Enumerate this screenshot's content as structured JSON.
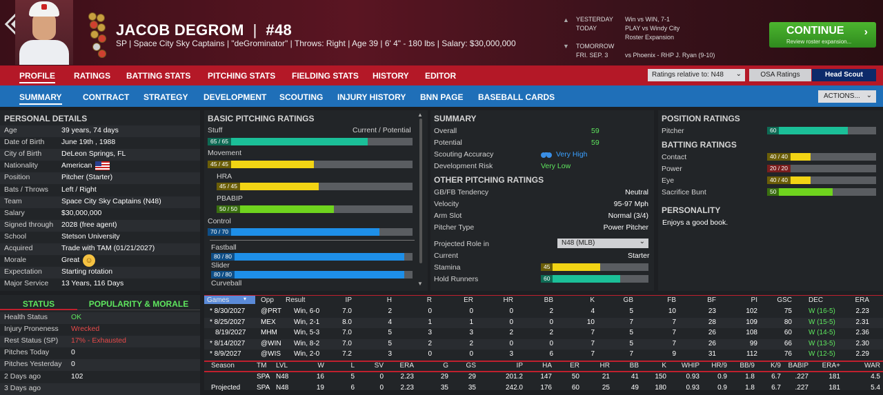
{
  "header": {
    "name": "JACOB DEGROM",
    "sep": "|",
    "number": "#48",
    "sub": "SP | Space City Sky Captains | \"deGrominator\" | Throws: Right | Age 39 | 6' 4\" - 180 lbs | Salary: $30,000,000"
  },
  "schedule": {
    "yesterday_label": "YESTERDAY",
    "yesterday": "Win vs WIN, 7-1",
    "today_label": "TODAY",
    "today1": "PLAY vs Windy City",
    "today2": "Roster Expansion",
    "tomorrow_label": "TOMORROW",
    "tomorrow_date": "FRI. SEP. 3",
    "tomorrow": "vs Phoenix - RHP J. Ryan (9-10)"
  },
  "continue": {
    "label": "CONTINUE",
    "sub": "Review roster expansion..."
  },
  "nav1": [
    "PROFILE",
    "RATINGS",
    "BATTING STATS",
    "PITCHING STATS",
    "FIELDING STATS",
    "HISTORY",
    "EDITOR"
  ],
  "ratings_rel": "Ratings relative to: N48",
  "osa": "OSA Ratings",
  "head_scout": "Head Scout",
  "nav2": [
    "SUMMARY",
    "CONTRACT",
    "STRATEGY",
    "DEVELOPMENT",
    "SCOUTING",
    "INJURY HISTORY",
    "BNN PAGE",
    "BASEBALL CARDS"
  ],
  "actions": "ACTIONS...",
  "personal": {
    "title": "PERSONAL DETAILS",
    "rows": [
      [
        "Age",
        "39 years, 74 days"
      ],
      [
        "Date of Birth",
        "June 19th , 1988"
      ],
      [
        "City of Birth",
        "DeLeon Springs, FL"
      ],
      [
        "Nationality",
        "American"
      ],
      [
        "Position",
        "Pitcher (Starter)"
      ],
      [
        "Bats / Throws",
        "Left / Right"
      ],
      [
        "Team",
        "Space City Sky Captains (N48)"
      ],
      [
        "Salary",
        "$30,000,000"
      ],
      [
        "Signed through",
        "2028 (free agent)"
      ],
      [
        "School",
        "Stetson University"
      ],
      [
        "Acquired",
        "Trade with TAM (01/21/2027)"
      ],
      [
        "Morale",
        "Great"
      ],
      [
        "Expectation",
        "Starting rotation"
      ],
      [
        "Major Service",
        "13 Years, 116 Days"
      ]
    ]
  },
  "status": {
    "tab1": "STATUS",
    "tab2": "POPULARITY & MORALE",
    "rows": [
      [
        "Health Status",
        "OK"
      ],
      [
        "Injury Proneness",
        "Wrecked"
      ],
      [
        "Rest Status (SP)",
        "17% - Exhausted"
      ],
      [
        "Pitches Today",
        "0"
      ],
      [
        "Pitches Yesterday",
        "0"
      ],
      [
        "2 Days ago",
        "102"
      ],
      [
        "3 Days ago",
        ""
      ]
    ]
  },
  "basic": {
    "title": "BASIC PITCHING RATINGS",
    "stuff": "Stuff",
    "cp": "Current / Potential",
    "movement": "Movement",
    "hra": "HRA",
    "pbabip": "PBABIP",
    "control": "Control",
    "fastball": "Fastball",
    "slider": "Slider",
    "curveball": "Curveball",
    "ratings": {
      "stuff": "65 / 65",
      "movement": "45 / 45",
      "hra": "45 / 45",
      "pbabip": "50 / 50",
      "control": "70 / 70",
      "fastball": "80 / 80",
      "slider": "80 / 80"
    },
    "values": {
      "stuff": 0.78,
      "movement": 0.52,
      "hra": 0.52,
      "pbabip": 0.6,
      "control": 0.84,
      "fastball": 0.96,
      "slider": 0.96
    }
  },
  "summary": {
    "title": "SUMMARY",
    "overall_l": "Overall",
    "overall": "59",
    "potential_l": "Potential",
    "potential": "59",
    "scout_l": "Scouting Accuracy",
    "scout": "Very High",
    "risk_l": "Development Risk",
    "risk": "Very Low",
    "other": "OTHER PITCHING RATINGS",
    "rows": [
      [
        "GB/FB Tendency",
        "Neutral"
      ],
      [
        "Velocity",
        "95-97 Mph"
      ],
      [
        "Arm Slot",
        "Normal (3/4)"
      ],
      [
        "Pitcher Type",
        "Power Pitcher"
      ]
    ],
    "role_l": "Projected Role in",
    "role": "N48 (MLB)",
    "current_l": "Current",
    "current": "Starter",
    "stamina_l": "Stamina",
    "stamina": "45",
    "stamina_v": 0.55,
    "hold_l": "Hold Runners",
    "hold": "60",
    "hold_v": 0.74
  },
  "position": {
    "title": "POSITION RATINGS",
    "pitcher_l": "Pitcher",
    "pitcher": "60",
    "pitcher_v": 0.74,
    "batting": "BATTING RATINGS",
    "contact_l": "Contact",
    "contact": "40 / 40",
    "contact_v": 0.4,
    "power_l": "Power",
    "power": "20 / 20",
    "power_v": 0.21,
    "eye_l": "Eye",
    "eye": "40 / 40",
    "eye_v": 0.4,
    "sac_l": "Sacrifice Bunt",
    "sac": "50",
    "sac_v": 0.6,
    "personality": "PERSONALITY",
    "pers_text": "Enjoys a good book."
  },
  "games": {
    "headers": [
      "Games",
      "Opp",
      "Result",
      "IP",
      "H",
      "R",
      "ER",
      "HR",
      "BB",
      "K",
      "GB",
      "FB",
      "BF",
      "PI",
      "GSC",
      "DEC",
      "ERA"
    ],
    "rows": [
      [
        "* 8/30/2027",
        "@PRT",
        "Win, 6-0",
        "7.0",
        "2",
        "0",
        "0",
        "0",
        "2",
        "4",
        "5",
        "10",
        "23",
        "102",
        "75",
        "W (16-5)",
        "2.23"
      ],
      [
        "* 8/25/2027",
        "MEX",
        "Win, 2-1",
        "8.0",
        "4",
        "1",
        "1",
        "0",
        "0",
        "10",
        "7",
        "7",
        "28",
        "109",
        "80",
        "W (15-5)",
        "2.31"
      ],
      [
        "8/19/2027",
        "MHM",
        "Win, 5-3",
        "7.0",
        "5",
        "3",
        "3",
        "2",
        "2",
        "7",
        "5",
        "7",
        "26",
        "108",
        "60",
        "W (14-5)",
        "2.36"
      ],
      [
        "* 8/14/2027",
        "@WIN",
        "Win, 8-2",
        "7.0",
        "5",
        "2",
        "2",
        "0",
        "0",
        "7",
        "5",
        "7",
        "26",
        "99",
        "66",
        "W (13-5)",
        "2.30"
      ],
      [
        "* 8/9/2027",
        "@WIS",
        "Win, 2-0",
        "7.2",
        "3",
        "0",
        "0",
        "3",
        "6",
        "7",
        "7",
        "9",
        "31",
        "112",
        "76",
        "W (12-5)",
        "2.29"
      ]
    ]
  },
  "season": {
    "headers": [
      "Season",
      "TM",
      "LVL",
      "W",
      "L",
      "SV",
      "ERA",
      "G",
      "GS",
      "IP",
      "HA",
      "ER",
      "HR",
      "BB",
      "K",
      "WHIP",
      "HR/9",
      "BB/9",
      "K/9",
      "BABIP",
      "ERA+",
      "WAR"
    ],
    "rows": [
      [
        "",
        "SPA",
        "N48",
        "16",
        "5",
        "0",
        "2.23",
        "29",
        "29",
        "201.2",
        "147",
        "50",
        "21",
        "41",
        "150",
        "0.93",
        "0.9",
        "1.8",
        "6.7",
        ".227",
        "181",
        "4.5"
      ],
      [
        "Projected",
        "SPA",
        "N48",
        "19",
        "6",
        "0",
        "2.23",
        "35",
        "35",
        "242.0",
        "176",
        "60",
        "25",
        "49",
        "180",
        "0.93",
        "0.9",
        "1.8",
        "6.7",
        ".227",
        "181",
        "5.4"
      ]
    ]
  },
  "colors": {
    "teal": "#1bbf98",
    "yellow": "#f2d414",
    "green": "#6fd41e",
    "blue": "#1e8fe8",
    "red": "#e84a4a",
    "highlight_green": "#5ee65e"
  }
}
